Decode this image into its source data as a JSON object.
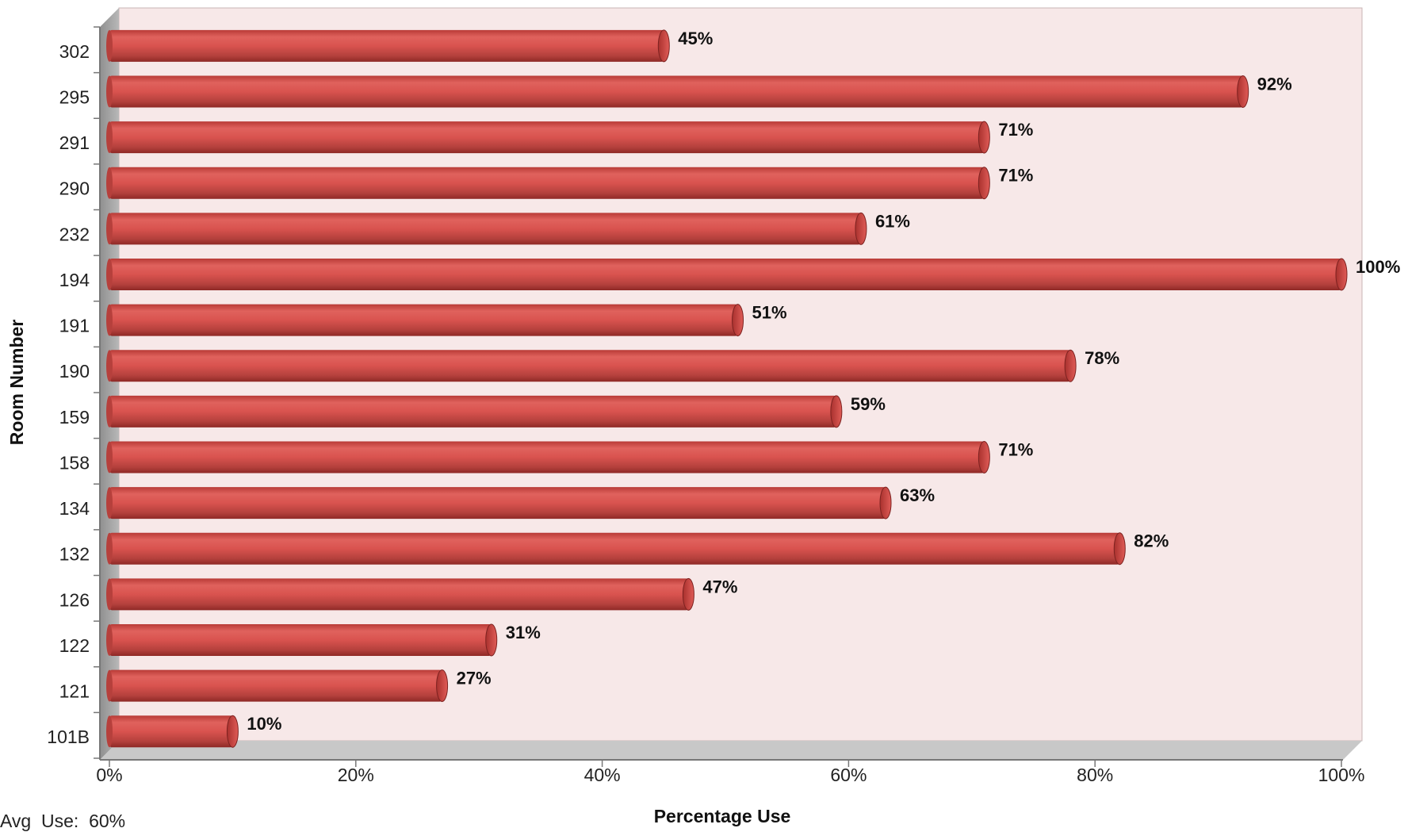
{
  "chart_data": {
    "type": "bar",
    "orientation": "horizontal",
    "categories": [
      "302",
      "295",
      "291",
      "290",
      "232",
      "194",
      "191",
      "190",
      "159",
      "158",
      "134",
      "132",
      "126",
      "122",
      "121",
      "101B"
    ],
    "values": [
      45,
      92,
      71,
      71,
      61,
      100,
      51,
      78,
      59,
      71,
      63,
      82,
      47,
      31,
      27,
      10
    ],
    "data_labels": [
      "45%",
      "92%",
      "71%",
      "71%",
      "61%",
      "100%",
      "51%",
      "78%",
      "59%",
      "71%",
      "63%",
      "82%",
      "47%",
      "31%",
      "27%",
      "10%"
    ],
    "xlabel": "Percentage Use",
    "ylabel": "Room Number",
    "xlim": [
      0,
      100
    ],
    "x_ticks": [
      "0%",
      "20%",
      "40%",
      "60%",
      "80%",
      "100%"
    ],
    "grid": false,
    "style": "3d-cylinder",
    "colors": {
      "bar": "#d9534f",
      "bar_dark": "#9c2b28",
      "plot_bg": "#f7e8e8",
      "wall": "#a8a8a8",
      "floor": "#c8c8c8"
    }
  },
  "footnote": "Avg  Use:  60%"
}
